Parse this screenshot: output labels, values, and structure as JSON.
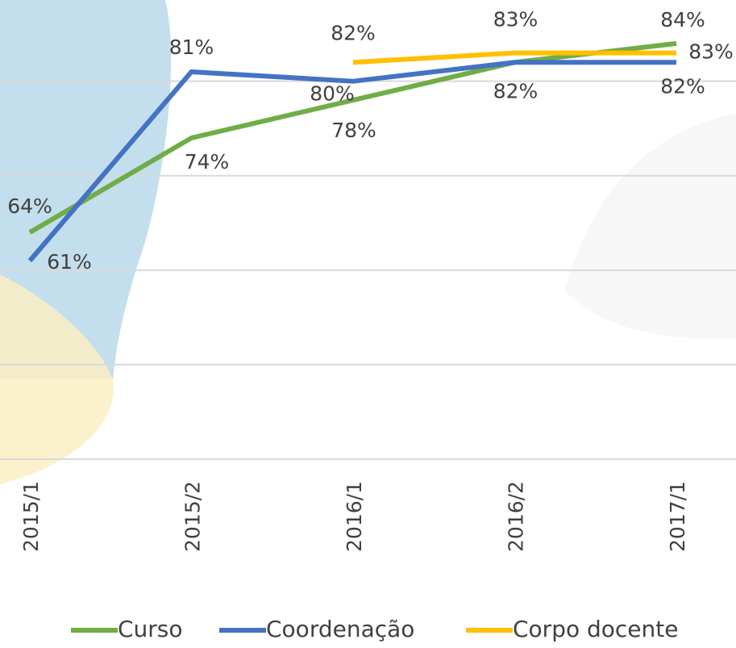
{
  "chart_data": {
    "type": "line",
    "categories": [
      "2015/1",
      "2015/2",
      "2016/1",
      "2016/2",
      "2017/1"
    ],
    "series": [
      {
        "name": "Curso",
        "color": "#70ad47",
        "values": [
          64,
          74,
          78,
          82,
          84
        ],
        "value_labels": [
          "64%",
          "74%",
          "78%",
          "82%",
          "84%"
        ]
      },
      {
        "name": "Coordenação",
        "color": "#4472c4",
        "values": [
          61,
          81,
          80,
          82,
          82
        ],
        "value_labels": [
          "61%",
          "81%",
          "80%",
          null,
          "82%"
        ]
      },
      {
        "name": "Corpo docente",
        "color": "#ffc000",
        "values": [
          null,
          null,
          82,
          83,
          83
        ],
        "value_labels": [
          null,
          null,
          "82%",
          "83%",
          "83%"
        ]
      }
    ],
    "ylim": [
      40,
      88.6
    ],
    "yticks": [
      40,
      50,
      60,
      70,
      80
    ],
    "grid": true
  }
}
